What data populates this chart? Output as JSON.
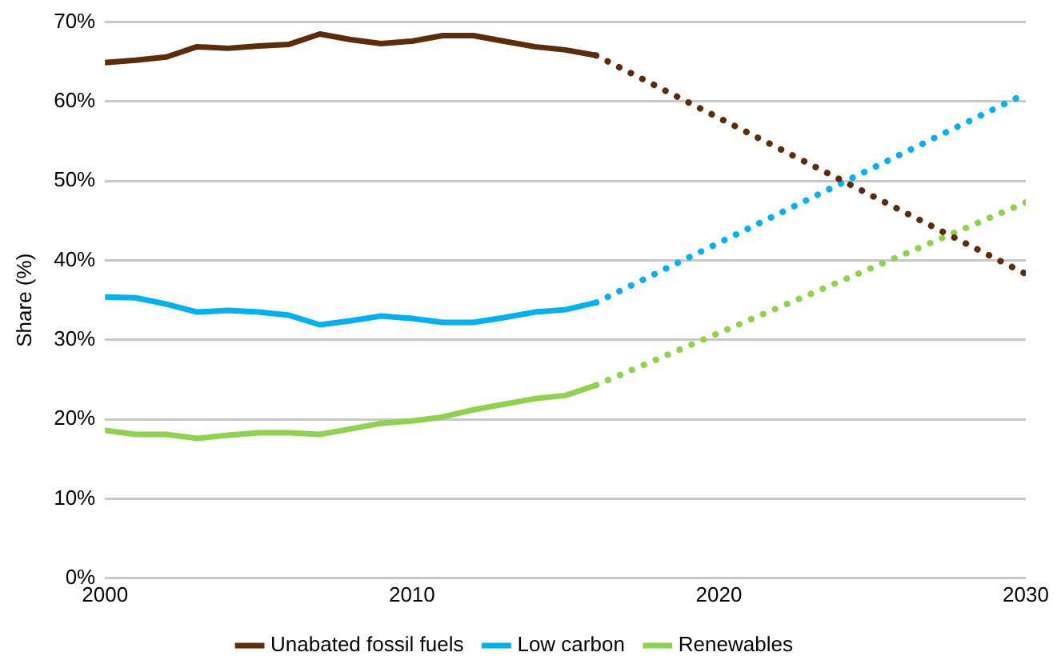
{
  "chart_data": {
    "type": "line",
    "ylabel": "Share (%)",
    "x": [
      2000,
      2001,
      2002,
      2003,
      2004,
      2005,
      2006,
      2007,
      2008,
      2009,
      2010,
      2011,
      2012,
      2013,
      2014,
      2015,
      2016,
      2030
    ],
    "series": [
      {
        "name": "Unabated fossil fuels",
        "color": "#5a2d0c",
        "values": [
          64.9,
          65.2,
          65.6,
          66.9,
          66.7,
          67.0,
          67.2,
          68.5,
          67.8,
          67.3,
          67.6,
          68.3,
          68.3,
          67.6,
          66.9,
          66.5,
          65.8,
          null
        ]
      },
      {
        "name": "Low carbon",
        "color": "#00b0f0",
        "values": [
          35.4,
          35.3,
          34.5,
          33.5,
          33.7,
          33.5,
          33.1,
          31.9,
          32.4,
          33.0,
          32.7,
          32.2,
          32.2,
          32.8,
          33.5,
          33.8,
          34.7,
          null
        ]
      },
      {
        "name": "Renewables",
        "color": "#92d050",
        "values": [
          18.6,
          18.1,
          18.1,
          17.6,
          18.0,
          18.3,
          18.3,
          18.1,
          18.8,
          19.5,
          19.8,
          20.3,
          21.2,
          21.9,
          22.6,
          23.0,
          24.3,
          null
        ]
      },
      {
        "color": "#5a2d0c",
        "line_style": "dotted",
        "values": [
          null,
          null,
          null,
          null,
          null,
          null,
          null,
          null,
          null,
          null,
          null,
          null,
          null,
          null,
          null,
          null,
          65.8,
          38.3
        ]
      },
      {
        "color": "#00b0f0",
        "line_style": "dotted",
        "values": [
          null,
          null,
          null,
          null,
          null,
          null,
          null,
          null,
          null,
          null,
          null,
          null,
          null,
          null,
          null,
          null,
          34.7,
          61
        ]
      },
      {
        "color": "#92d050",
        "line_style": "dotted",
        "values": [
          null,
          null,
          null,
          null,
          null,
          null,
          null,
          null,
          null,
          null,
          null,
          null,
          null,
          null,
          null,
          null,
          24.3,
          47.3
        ]
      }
    ],
    "xlim": [
      2000,
      2030
    ],
    "xticks": [
      2000,
      2010,
      2020,
      2030
    ],
    "ylim": [
      0,
      70
    ],
    "yticks": [
      {
        "value": 0,
        "label": "0%"
      },
      {
        "value": 10,
        "label": "10%"
      },
      {
        "value": 20,
        "label": "20%"
      },
      {
        "value": 30,
        "label": "30%"
      },
      {
        "value": 40,
        "label": "40%"
      },
      {
        "value": 50,
        "label": "50%"
      },
      {
        "value": 60,
        "label": "60%"
      },
      {
        "value": 70,
        "label": "70%"
      }
    ],
    "grid": "y",
    "legend": "bottom",
    "marker": "none",
    "line_style": "solid"
  }
}
